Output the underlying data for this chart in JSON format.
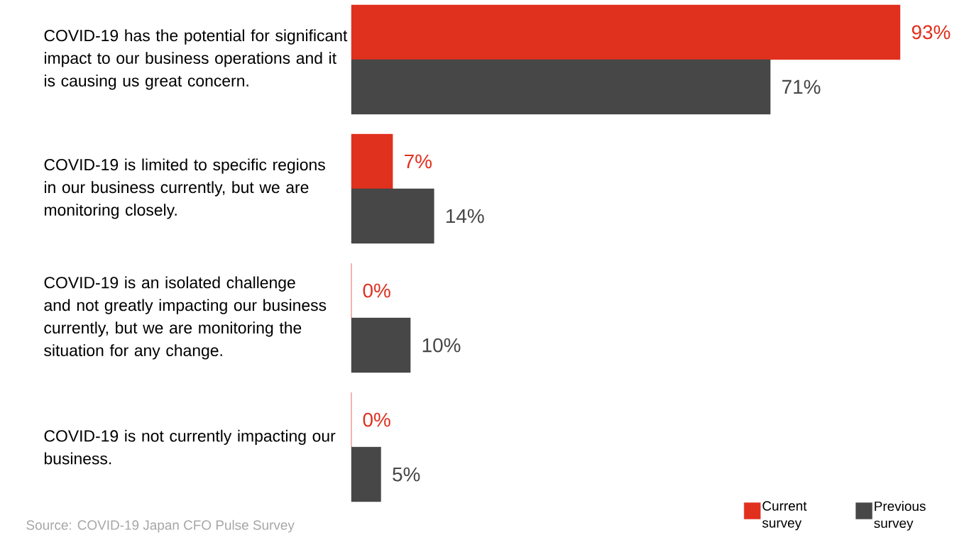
{
  "chart_data": {
    "type": "bar",
    "orientation": "horizontal",
    "categories": [
      "COVID-19 has the potential for significant impact to our business operations and it is causing us great concern.",
      "COVID-19 is limited to specific regions in our business currently, but we are monitoring closely.",
      "COVID-19 is an isolated challenge and not greatly impacting our business currently, but we are monitoring the situation for any change.",
      "COVID-19 is not currently impacting our business."
    ],
    "series": [
      {
        "name": "Current survey",
        "color": "#e0301e",
        "values": [
          93,
          7,
          0,
          0
        ],
        "value_labels": [
          "93%",
          "7%",
          "0%",
          "0%"
        ]
      },
      {
        "name": "Previous survey",
        "color": "#474747",
        "values": [
          71,
          14,
          10,
          5
        ],
        "value_labels": [
          "71%",
          "14%",
          "10%",
          "5%"
        ]
      }
    ],
    "legend": "bottom right",
    "annotations": [
      "Source: COVID-19 Japan CFO Pulse Survey"
    ]
  }
}
